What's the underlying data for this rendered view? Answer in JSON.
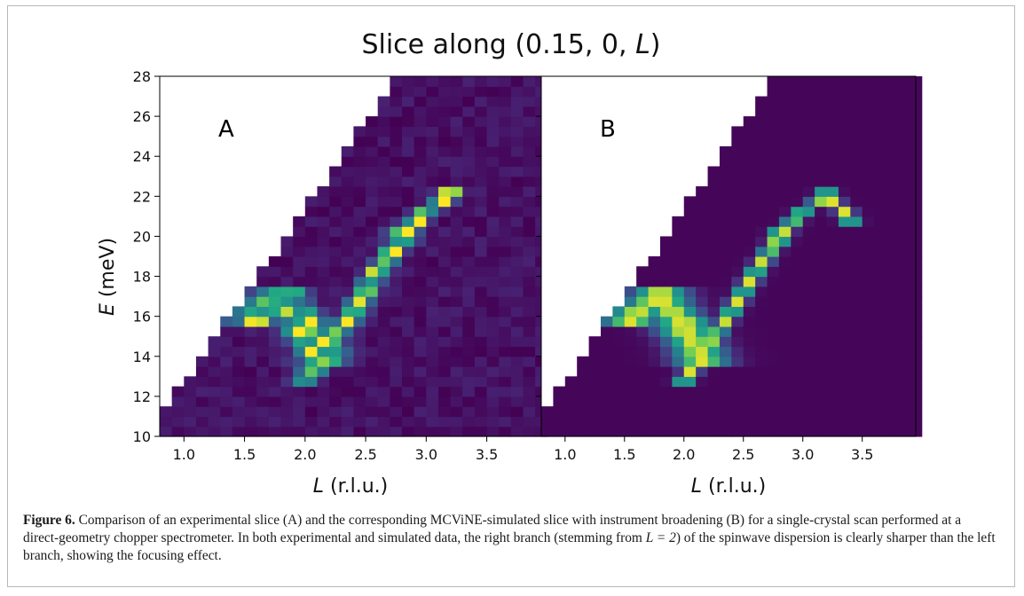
{
  "figure": {
    "suptitle_prefix": "Slice along (0.15, 0, ",
    "suptitle_var": "L",
    "suptitle_suffix": ")",
    "caption": {
      "label": "Figure 6.",
      "part1": " Comparison of an experimental slice (A) and the corresponding MCViNE-simulated slice with instrument broadening (B) for a single-crystal scan performed at a direct-geometry chopper spectrometer. In both experimental and simulated data, the right branch (stemming from ",
      "math": "L = 2",
      "part2": ") of the spinwave dispersion is clearly sharper than the left branch, showing the focusing effect."
    }
  },
  "chart_data": [
    {
      "type": "heatmap",
      "panel_label": "A",
      "colormap": "viridis",
      "xlabel_var": "L",
      "xlabel_unit": " (r.l.u.)",
      "ylabel_var": "E",
      "ylabel_unit": " (meV)",
      "xlim": [
        0.8,
        3.95
      ],
      "ylim": [
        10,
        28
      ],
      "xticks": [
        "1.0",
        "1.5",
        "2.0",
        "2.5",
        "3.0",
        "3.5"
      ],
      "xtick_values": [
        1.0,
        1.5,
        2.0,
        2.5,
        3.0,
        3.5
      ],
      "yticks": [
        "10",
        "12",
        "14",
        "16",
        "18",
        "20",
        "22",
        "24",
        "26",
        "28"
      ],
      "ytick_values": [
        10,
        12,
        14,
        16,
        18,
        20,
        22,
        24,
        26,
        28
      ],
      "bin_width_L": 0.1,
      "bin_width_E": 0.5,
      "coverage_edge": {
        "L_start": 0.8,
        "E_at_start": 11.5,
        "dE_per_dL": 8.6
      },
      "branches": [
        {
          "name": "left",
          "L": [
            1.55,
            1.8,
            2.0,
            2.15
          ],
          "E": [
            16.0,
            17.0,
            15.5,
            14.0
          ],
          "sigma_L": 0.14
        },
        {
          "name": "right",
          "L": [
            2.0,
            2.2,
            2.4,
            2.6,
            2.8,
            3.0,
            3.2
          ],
          "E": [
            12.8,
            14.5,
            16.3,
            18.2,
            20.0,
            21.3,
            22.0
          ],
          "sigma_L": 0.07
        }
      ],
      "noisy": true
    },
    {
      "type": "heatmap",
      "panel_label": "B",
      "colormap": "viridis",
      "xlabel_var": "L",
      "xlabel_unit": " (r.l.u.)",
      "xlim": [
        0.8,
        3.95
      ],
      "ylim": [
        10,
        28
      ],
      "xticks": [
        "1.0",
        "1.5",
        "2.0",
        "2.5",
        "3.0",
        "3.5"
      ],
      "xtick_values": [
        1.0,
        1.5,
        2.0,
        2.5,
        3.0,
        3.5
      ],
      "bin_width_L": 0.1,
      "bin_width_E": 0.5,
      "coverage_edge": {
        "L_start": 0.8,
        "E_at_start": 11.5,
        "dE_per_dL": 8.6
      },
      "branches": [
        {
          "name": "left",
          "L": [
            1.55,
            1.8,
            2.0,
            2.15
          ],
          "E": [
            16.0,
            17.0,
            15.5,
            14.0
          ],
          "sigma_L": 0.16
        },
        {
          "name": "right",
          "L": [
            2.0,
            2.2,
            2.4,
            2.6,
            2.8,
            3.0,
            3.2,
            3.4
          ],
          "E": [
            12.8,
            14.5,
            16.3,
            18.2,
            20.0,
            21.3,
            22.0,
            21.0
          ],
          "sigma_L": 0.055
        }
      ],
      "noisy": false
    }
  ]
}
